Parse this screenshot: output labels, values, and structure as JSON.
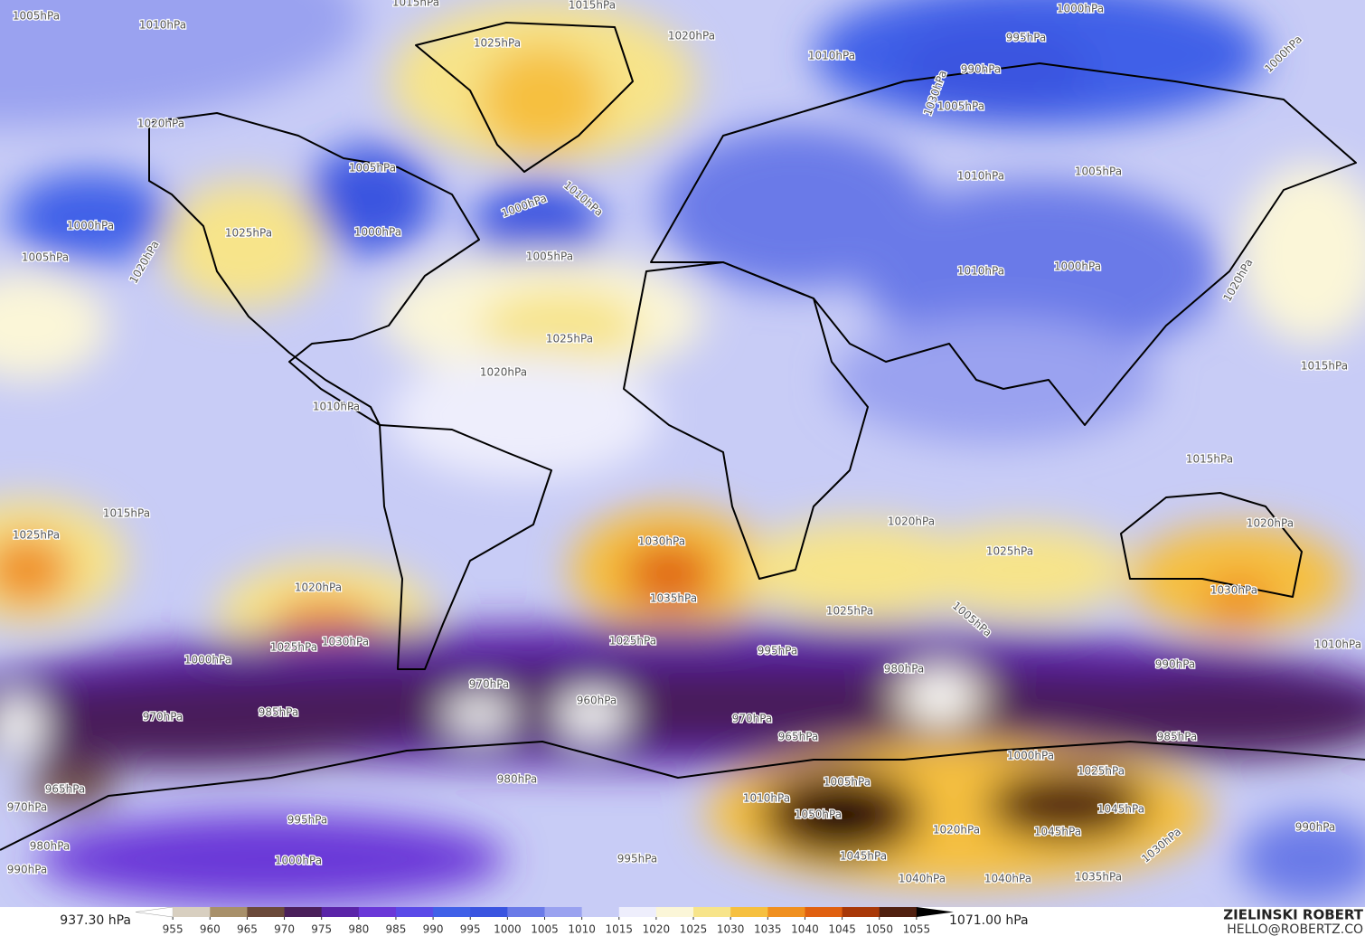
{
  "map": {
    "contour_labels": [
      "1005hPa",
      "1010hPa",
      "1015hPa",
      "1015hPa",
      "1000hPa",
      "1025hPa",
      "1020hPa",
      "995hPa",
      "990hPa",
      "1010hPa",
      "1000hPa",
      "1030hPa",
      "1020hPa",
      "1005hPa",
      "1005hPa",
      "1010hPa",
      "1005hPa",
      "1000hPa",
      "1010hPa",
      "1000hPa",
      "1025hPa",
      "1000hPa",
      "1005hPa",
      "1005hPa",
      "1020hPa",
      "1010hPa",
      "1000hPa",
      "1020hPa",
      "1025hPa",
      "1020hPa",
      "1015hPa",
      "1010hPa",
      "1015hPa",
      "1015hPa",
      "1025hPa",
      "1020hPa",
      "1020hPa",
      "1030hPa",
      "1025hPa",
      "1020hPa",
      "1035hPa",
      "1030hPa",
      "1025hPa",
      "1025hPa",
      "1025hPa",
      "1030hPa",
      "1000hPa",
      "1005hPa",
      "1010hPa",
      "995hPa",
      "990hPa",
      "980hPa",
      "970hPa",
      "960hPa",
      "970hPa",
      "985hPa",
      "965hPa",
      "970hPa",
      "985hPa",
      "980hPa",
      "1000hPa",
      "1025hPa",
      "965hPa",
      "970hPa",
      "1010hPa",
      "1005hPa",
      "1050hPa",
      "1045hPa",
      "995hPa",
      "1020hPa",
      "1045hPa",
      "1000hPa",
      "1045hPa",
      "990hPa",
      "980hPa",
      "990hPa",
      "995hPa",
      "1040hPa",
      "1040hPa",
      "1035hPa",
      "1030hPa"
    ]
  },
  "colorbar": {
    "min_label": "937.30 hPa",
    "max_label": "1071.00 hPa",
    "range": [
      950,
      1060
    ],
    "ticks": [
      955,
      960,
      965,
      970,
      975,
      980,
      985,
      990,
      995,
      1000,
      1005,
      1010,
      1015,
      1020,
      1025,
      1030,
      1035,
      1040,
      1045,
      1050,
      1055
    ],
    "colors": [
      "#ffffff",
      "#d8cfc0",
      "#a8906a",
      "#6b4a3a",
      "#4a1f5a",
      "#5a24a8",
      "#6a38d8",
      "#5a4ae8",
      "#4060e8",
      "#3a54e0",
      "#6a7ae8",
      "#9aa2f0",
      "#c8ccf6",
      "#eeeefc",
      "#fbf6d8",
      "#f7e48a",
      "#f6c040",
      "#f09020",
      "#e06010",
      "#a83808",
      "#502010",
      "#000000"
    ]
  },
  "credits": {
    "name": "ZIELINSKI ROBERT",
    "email": "HELLO@ROBERTZ.CO"
  }
}
